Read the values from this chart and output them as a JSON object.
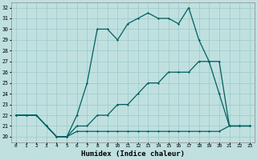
{
  "xlabel": "Humidex (Indice chaleur)",
  "bg_color": "#c0e0e0",
  "grid_color": "#a0cccc",
  "line_color": "#006060",
  "xlim": [
    -0.5,
    23.5
  ],
  "ylim": [
    19.5,
    32.5
  ],
  "yticks": [
    20,
    21,
    22,
    23,
    24,
    25,
    26,
    27,
    28,
    29,
    30,
    31,
    32
  ],
  "xticks": [
    0,
    1,
    2,
    3,
    4,
    5,
    6,
    7,
    8,
    9,
    10,
    11,
    12,
    13,
    14,
    15,
    16,
    17,
    18,
    19,
    20,
    21,
    22,
    23
  ],
  "line1_x": [
    0,
    1,
    2,
    3,
    4,
    5,
    6,
    7,
    8,
    9,
    10,
    11,
    12,
    13,
    14,
    15,
    16,
    17,
    18,
    19,
    20,
    21,
    22,
    23
  ],
  "line1_y": [
    22,
    22,
    22,
    21,
    20,
    20,
    20.5,
    20.5,
    20.5,
    20.5,
    20.5,
    20.5,
    20.5,
    20.5,
    20.5,
    20.5,
    20.5,
    20.5,
    20.5,
    20.5,
    20.5,
    21,
    21,
    21
  ],
  "line2_x": [
    0,
    1,
    2,
    3,
    4,
    5,
    6,
    7,
    8,
    9,
    10,
    11,
    12,
    13,
    14,
    15,
    16,
    17,
    18,
    19,
    20,
    21,
    22,
    23
  ],
  "line2_y": [
    22,
    22,
    22,
    21,
    20,
    20,
    21,
    21,
    22,
    22,
    23,
    23,
    24,
    25,
    25,
    26,
    26,
    26,
    27,
    27,
    27,
    21,
    21,
    21
  ],
  "line3_x": [
    0,
    1,
    2,
    3,
    4,
    5,
    6,
    7,
    8,
    9,
    10,
    11,
    12,
    13,
    14,
    15,
    16,
    17,
    18,
    19,
    20,
    21,
    22,
    23
  ],
  "line3_y": [
    22,
    22,
    22,
    21,
    20,
    20,
    22,
    25,
    30,
    30,
    29,
    30.5,
    31,
    31.5,
    31,
    31,
    30.5,
    32,
    29,
    27,
    24,
    21,
    21,
    21
  ]
}
